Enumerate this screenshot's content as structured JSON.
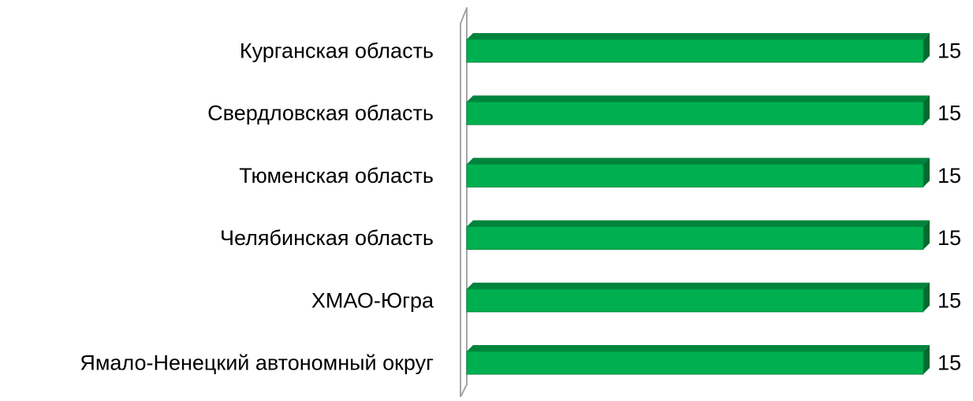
{
  "chart_data": {
    "type": "bar",
    "orientation": "horizontal",
    "style": "3d",
    "categories": [
      "Курганская область",
      "Свердловская область",
      "Тюменская область",
      "Челябинская область",
      "ХМАО-Югра",
      "Ямало-Ненецкий автономный округ"
    ],
    "values": [
      15,
      15,
      15,
      15,
      15,
      15
    ],
    "data_labels": [
      "15",
      "15",
      "15",
      "15",
      "15",
      "15"
    ],
    "xlim": [
      0,
      15
    ],
    "grid": false,
    "legend": "none",
    "colors": {
      "bar_front": "#00B050",
      "bar_top": "#00843C",
      "bar_side": "#006B2F",
      "bar_edge": "#008A3E",
      "axis_wall": "#A6A6A6",
      "label_text": "#000000"
    }
  }
}
